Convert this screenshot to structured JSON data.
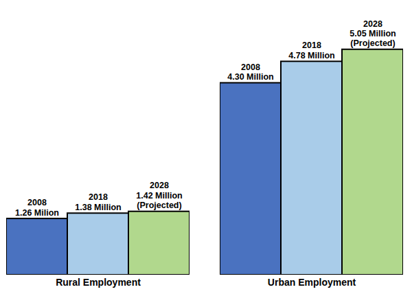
{
  "chart_data": {
    "type": "bar",
    "categories": [
      "Rural Employment",
      "Urban Employment"
    ],
    "series": [
      {
        "name": "2008",
        "color": "#4a72c0",
        "values": [
          1.26,
          4.3
        ],
        "value_labels": [
          "1.26 Milion",
          "4.30 Million"
        ]
      },
      {
        "name": "2018",
        "color": "#a9cce9",
        "values": [
          1.38,
          4.78
        ],
        "value_labels": [
          "1.38 Million",
          "4.78 Million"
        ]
      },
      {
        "name": "2028",
        "color": "#b1d88d",
        "values": [
          1.42,
          5.05
        ],
        "value_labels": [
          "1.42 Million\n(Projected)",
          "5.05 Million\n(Projected)"
        ]
      }
    ],
    "ylim": [
      0,
      6
    ],
    "data_labels": true,
    "tick_labels": "x"
  }
}
